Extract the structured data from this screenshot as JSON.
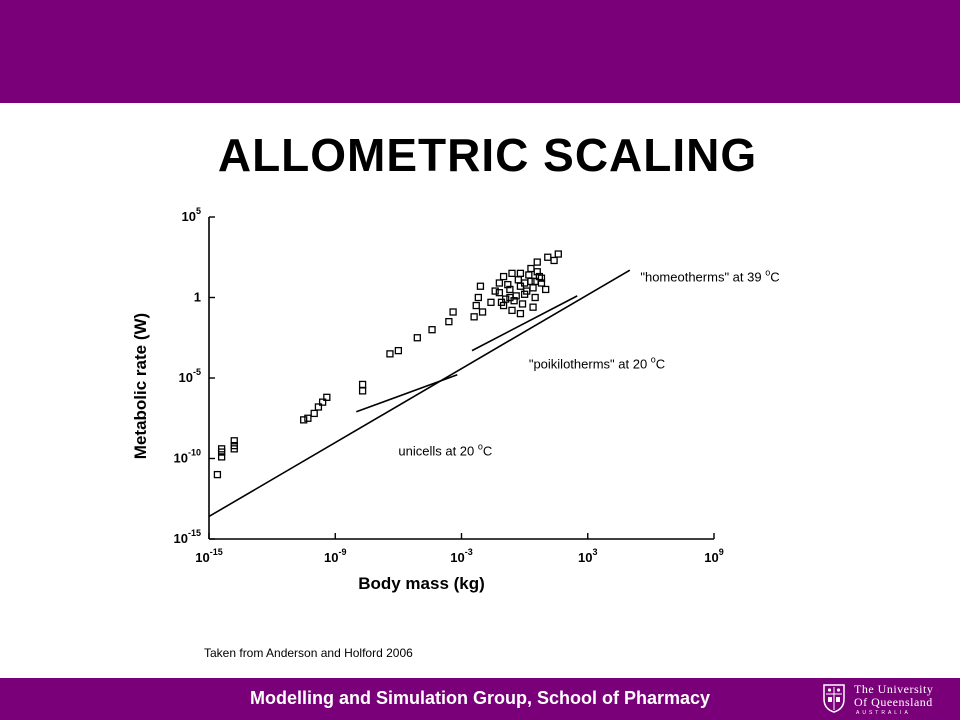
{
  "header": {
    "title": "ALLOMETRIC SCALING"
  },
  "citation": "Taken from  Anderson and Holford 2006",
  "footer": {
    "text": "Modelling and Simulation Group, School of Pharmacy",
    "logo": {
      "line1": "The University",
      "line2": "Of Queensland",
      "line3": "AUSTRALIA"
    }
  },
  "colors": {
    "bar": "#7a007a",
    "footer_text": "#ffffff"
  },
  "chart_data": {
    "type": "scatter",
    "xlabel": "Body mass (kg)",
    "ylabel": "Metabolic rate (W)",
    "x_scale": "log",
    "y_scale": "log",
    "xlim_exp": [
      -15,
      9
    ],
    "ylim_exp": [
      -15,
      5
    ],
    "x_ticks": [
      {
        "exp": -15,
        "label": "10-15"
      },
      {
        "exp": -9,
        "label": "10-9"
      },
      {
        "exp": -3,
        "label": "10-3"
      },
      {
        "exp": 3,
        "label": "103"
      },
      {
        "exp": 9,
        "label": "109"
      }
    ],
    "y_ticks": [
      {
        "exp": 5,
        "label": "105"
      },
      {
        "exp": 0,
        "label": "1"
      },
      {
        "exp": -5,
        "label": "10-5"
      },
      {
        "exp": -10,
        "label": "10-10"
      },
      {
        "exp": -15,
        "label": "10-15"
      }
    ],
    "lines": [
      {
        "name": "\"homeotherms\" at 39 °C",
        "x_exp": [
          -15,
          5
        ],
        "y_exp": [
          -13.6,
          1.7
        ]
      },
      {
        "name": "\"poikilotherms\" at 20 °C",
        "x_exp": [
          -2.5,
          2.5
        ],
        "y_exp": [
          -3.3,
          0.1
        ]
      },
      {
        "name": "unicells at 20 °C",
        "x_exp": [
          -8,
          -3.2
        ],
        "y_exp": [
          -7.1,
          -4.8
        ]
      }
    ],
    "annotations": [
      {
        "text": "\"homeotherms\" at 39 °C",
        "x_exp": 5.5,
        "y_exp": 1.0
      },
      {
        "text": "\"poikilotherms\" at 20 °C",
        "x_exp": 0.2,
        "y_exp": -4.4
      },
      {
        "text": "unicells at 20 °C",
        "x_exp": -6.0,
        "y_exp": -9.8
      }
    ],
    "series": [
      {
        "x_exp": [
          -14.6,
          -14.4,
          -14.4,
          -14.4,
          -13.8,
          -13.8,
          -13.8,
          -10.5,
          -10.3,
          -10.0,
          -9.8,
          -9.6,
          -9.4,
          -7.7,
          -7.7,
          -6.4,
          -6.0,
          -5.1,
          -4.4,
          -3.6,
          -3.4,
          -2.4,
          -2.3,
          -2.2,
          -2.1,
          -2.0,
          -1.6,
          -1.4,
          -1.2,
          -1.0,
          -0.6,
          -0.2,
          0.3,
          0.6,
          1.1,
          1.4,
          1.6
        ],
        "y_exp": [
          -11.0,
          -9.9,
          -9.6,
          -9.4,
          -9.4,
          -9.2,
          -8.9,
          -7.6,
          -7.5,
          -7.2,
          -6.8,
          -6.5,
          -6.2,
          -5.8,
          -5.4,
          -3.5,
          -3.3,
          -2.5,
          -2.0,
          -1.5,
          -0.9,
          -1.2,
          -0.5,
          0.0,
          0.7,
          -0.9,
          -0.3,
          0.4,
          0.9,
          1.3,
          1.5,
          -1.0,
          1.8,
          2.2,
          2.5,
          2.3,
          2.7
        ]
      },
      {
        "x_exp": [
          -1.0,
          -0.5,
          0.0,
          0.4,
          0.8,
          -1.2,
          -0.7,
          -0.2,
          0.3,
          0.7,
          -0.9,
          -0.4,
          0.1,
          0.5,
          1.0,
          -0.8,
          -0.3,
          0.2,
          0.6,
          -0.6,
          -0.1,
          0.4,
          -0.7,
          0.0,
          0.8,
          -1.1,
          -0.2,
          0.5
        ],
        "y_exp": [
          -0.5,
          -0.2,
          0.2,
          0.6,
          0.9,
          0.3,
          0.5,
          0.7,
          1.0,
          1.3,
          -0.1,
          0.1,
          0.4,
          0.0,
          0.5,
          0.8,
          1.1,
          1.4,
          1.6,
          -0.8,
          -0.4,
          -0.6,
          0.0,
          0.9,
          1.2,
          -0.3,
          1.5,
          1.0
        ]
      }
    ]
  }
}
